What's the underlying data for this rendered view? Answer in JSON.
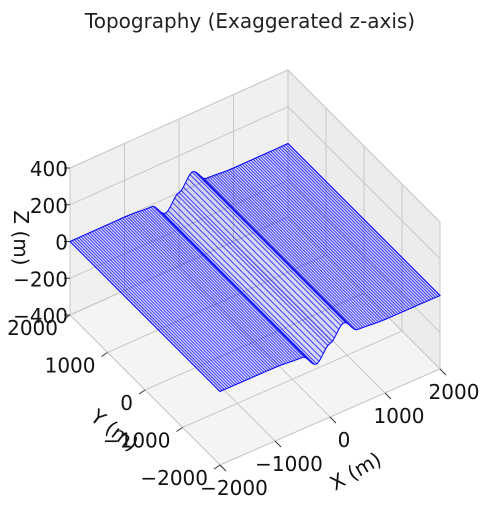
{
  "chart_data": {
    "type": "surface",
    "title": "Topography (Exaggerated z-axis)",
    "xlabel": "X (m)",
    "ylabel": "Y (m)",
    "zlabel": "Z (m)",
    "xlim": [
      -2000,
      2000
    ],
    "ylim": [
      -2000,
      2000
    ],
    "zlim": [
      -400,
      400
    ],
    "xticks": [
      {
        "v": -2000,
        "t": "−2000"
      },
      {
        "v": -1000,
        "t": "−1000"
      },
      {
        "v": 0,
        "t": "0"
      },
      {
        "v": 1000,
        "t": "1000"
      },
      {
        "v": 2000,
        "t": "2000"
      }
    ],
    "yticks": [
      {
        "v": 2000,
        "t": "2000"
      },
      {
        "v": 1000,
        "t": "1000"
      },
      {
        "v": 0,
        "t": "0"
      },
      {
        "v": -1000,
        "t": "−1000"
      },
      {
        "v": -2000,
        "t": "−2000"
      }
    ],
    "zticks": [
      {
        "v": 400,
        "t": "400"
      },
      {
        "v": 200,
        "t": "200"
      },
      {
        "v": 0,
        "t": "0"
      },
      {
        "v": -200,
        "t": "−200"
      },
      {
        "v": -400,
        "t": "−400"
      }
    ],
    "grid": true,
    "surface_color": "#0000ff",
    "surface": {
      "x": [
        -2000,
        -1500,
        -1000,
        -500,
        -250,
        0,
        250,
        500,
        1000,
        1500,
        2000
      ],
      "z": [
        0,
        0,
        0,
        -10,
        -80,
        0,
        80,
        10,
        0,
        0,
        0
      ]
    }
  }
}
